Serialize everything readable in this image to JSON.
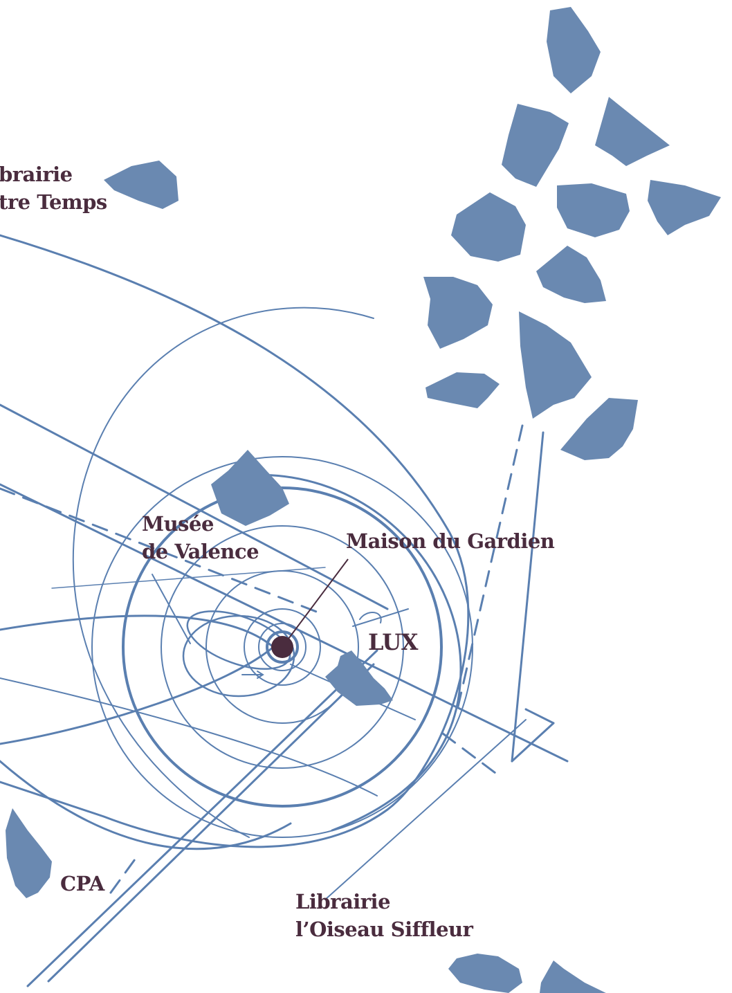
{
  "colors": {
    "background": "#ffffff",
    "orbit_lines": "#5a7fb0",
    "shapes": "#6a89b1",
    "label_text": "#4a2c3e",
    "marker": "#4a2c3e"
  },
  "places": {
    "librairie_autre_temps": {
      "line1": "brairie",
      "line2": "tre Temps",
      "icon": "rock-shape"
    },
    "musee_de_valence": {
      "line1": "Musée",
      "line2": "de Valence",
      "icon": "rock-shape"
    },
    "maison_du_gardien": {
      "label": "Maison du Gardien",
      "icon": "location-marker"
    },
    "lux": {
      "label": "LUX",
      "icon": "rock-shape"
    },
    "cpa": {
      "label": "CPA",
      "icon": "rock-shape"
    },
    "librairie_oiseau_siffleur": {
      "line1": "Librairie",
      "line2": "l’Oiseau Siffleur",
      "icon": "rock-shape"
    }
  }
}
